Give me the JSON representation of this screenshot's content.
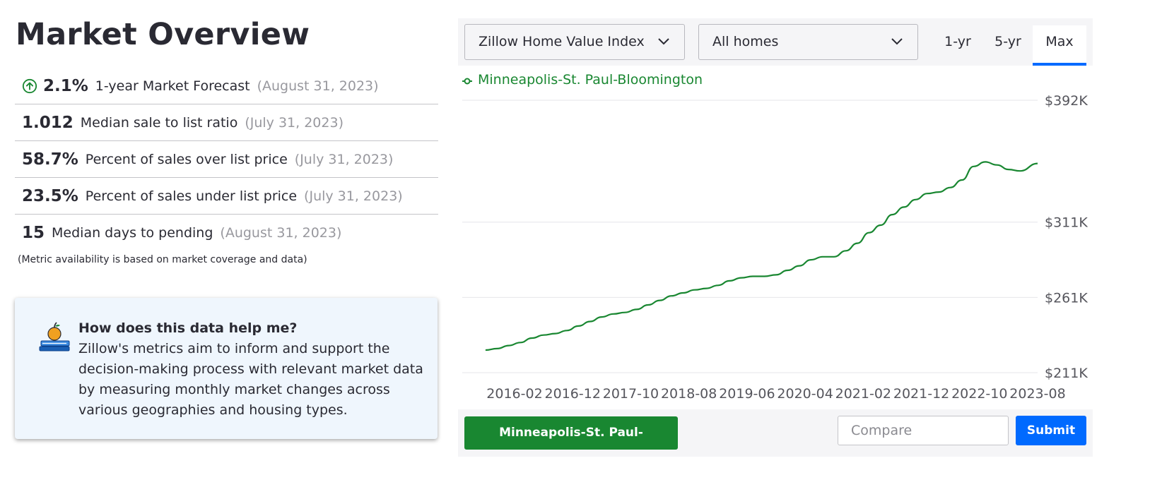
{
  "page": {
    "title": "Market Overview"
  },
  "metrics": [
    {
      "value": "2.1%",
      "label": "1-year Market Forecast",
      "date": "(August 31, 2023)",
      "icon": "arrow-up-circle-icon"
    },
    {
      "value": "1.012",
      "label": "Median sale to list ratio",
      "date": "(July 31, 2023)"
    },
    {
      "value": "58.7%",
      "label": "Percent of sales over list price",
      "date": "(July 31, 2023)"
    },
    {
      "value": "23.5%",
      "label": "Percent of sales under list price",
      "date": "(July 31, 2023)"
    },
    {
      "value": "15",
      "label": "Median days to pending",
      "date": "(August 31, 2023)"
    }
  ],
  "footnote": "(Metric availability is based on market coverage and data)",
  "help": {
    "icon": "apple-on-books-icon",
    "title": "How does this data help me?",
    "body": "Zillow's metrics aim to inform and support the decision-making process with relevant market data by measuring monthly market changes across various geographies and housing types."
  },
  "controls": {
    "metric_select": "Zillow Home Value Index",
    "home_type_select": "All homes",
    "ranges": [
      "1-yr",
      "5-yr",
      "Max"
    ],
    "active_range": "Max"
  },
  "bottom": {
    "region_chip": "Minneapolis-St. Paul-Bloomington",
    "compare_placeholder": "Compare",
    "submit_label": "Submit"
  },
  "colors": {
    "line": "#198731",
    "accent_blue": "#006aff",
    "help_bg": "#eff6fd"
  },
  "chart_data": {
    "type": "line",
    "title": "",
    "xlabel": "",
    "ylabel": "",
    "legend_position": "top-left",
    "grid": true,
    "x_tick_labels": [
      "2016-02",
      "2016-12",
      "2017-10",
      "2018-08",
      "2019-06",
      "2020-04",
      "2021-02",
      "2021-12",
      "2022-10",
      "2023-08"
    ],
    "y_tick_labels": [
      "$392K",
      "$311K",
      "$261K",
      "$211K"
    ],
    "y_tick_values": [
      392,
      311,
      261,
      211
    ],
    "ylim": [
      211,
      392
    ],
    "y_unit": "thousand USD",
    "series": [
      {
        "name": "Minneapolis-St. Paul-Bloomington",
        "x": [
          "2015-09",
          "2015-11",
          "2016-01",
          "2016-03",
          "2016-05",
          "2016-07",
          "2016-09",
          "2016-11",
          "2017-01",
          "2017-03",
          "2017-05",
          "2017-07",
          "2017-09",
          "2017-11",
          "2018-01",
          "2018-03",
          "2018-05",
          "2018-07",
          "2018-09",
          "2018-11",
          "2019-01",
          "2019-03",
          "2019-05",
          "2019-07",
          "2019-09",
          "2019-11",
          "2020-01",
          "2020-03",
          "2020-05",
          "2020-07",
          "2020-09",
          "2020-11",
          "2021-01",
          "2021-03",
          "2021-05",
          "2021-07",
          "2021-09",
          "2021-11",
          "2022-01",
          "2022-03",
          "2022-05",
          "2022-07",
          "2022-09",
          "2022-11",
          "2023-01",
          "2023-03",
          "2023-05",
          "2023-08"
        ],
        "values": [
          226,
          227,
          229,
          231,
          234,
          236,
          237,
          239,
          242,
          245,
          248,
          250,
          251,
          253,
          256,
          259,
          262,
          264,
          266,
          267,
          269,
          272,
          274,
          275,
          275,
          276,
          279,
          282,
          286,
          288,
          288,
          292,
          297,
          304,
          309,
          316,
          321,
          326,
          330,
          331,
          334,
          339,
          348,
          351,
          349,
          346,
          345,
          350
        ]
      }
    ]
  }
}
